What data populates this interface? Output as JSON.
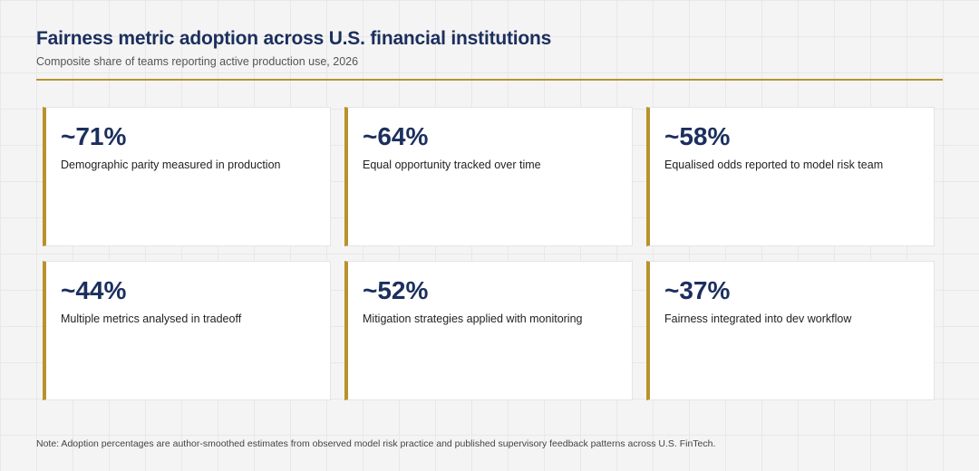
{
  "header": {
    "title": "Fairness metric adoption across U.S. financial institutions",
    "subtitle": "Composite share of teams reporting active production use, 2026"
  },
  "chart_data": {
    "type": "table",
    "title": "Fairness metric adoption across U.S. financial institutions",
    "subtitle": "Composite share of teams reporting active production use, 2026",
    "categories": [
      "Demographic parity measured in production",
      "Equal opportunity tracked over time",
      "Equalised odds reported to model risk team",
      "Multiple metrics analysed in tradeoff",
      "Mitigation strategies applied with monitoring",
      "Fairness integrated into dev workflow"
    ],
    "values": [
      71,
      64,
      58,
      44,
      52,
      37
    ],
    "value_labels": [
      "~71%",
      "~64%",
      "~58%",
      "~44%",
      "~52%",
      "~37%"
    ],
    "unit": "%"
  },
  "footer": {
    "note": "Note: Adoption percentages are author-smoothed estimates from observed model risk practice and published supervisory feedback patterns across U.S. FinTech."
  },
  "colors": {
    "accent": "#b8922c",
    "value": "#1b2f5e"
  }
}
